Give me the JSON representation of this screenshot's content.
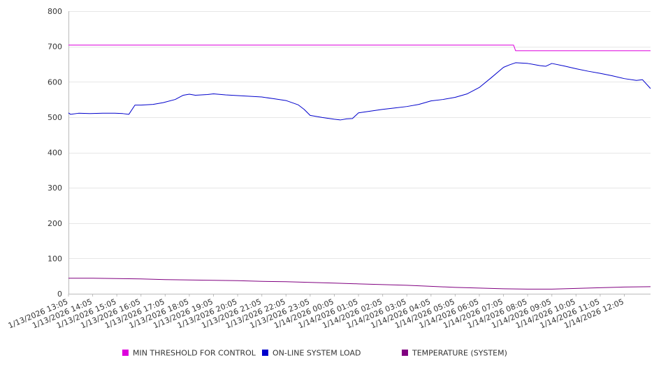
{
  "chart_data": {
    "type": "line",
    "title": "",
    "xlabel": "",
    "ylabel": "",
    "ylim": [
      0,
      800
    ],
    "yticks": [
      0,
      100,
      200,
      300,
      400,
      500,
      600,
      700,
      800
    ],
    "grid": true,
    "legend_position": "bottom",
    "x_start": "1/13/2026 13:05",
    "x_end": "1/14/2026 13:10",
    "xtick_labels": [
      "1/13/2026 13:05",
      "1/13/2026 14:05",
      "1/13/2026 15:05",
      "1/13/2026 16:05",
      "1/13/2026 17:05",
      "1/13/2026 18:05",
      "1/13/2026 19:05",
      "1/13/2026 20:05",
      "1/13/2026 21:05",
      "1/13/2026 22:05",
      "1/13/2026 23:05",
      "1/14/2026 00:05",
      "1/14/2026 01:05",
      "1/14/2026 02:05",
      "1/14/2026 03:05",
      "1/14/2026 04:05",
      "1/14/2026 05:05",
      "1/14/2026 06:05",
      "1/14/2026 07:05",
      "1/14/2026 08:05",
      "1/14/2026 09:05",
      "1/14/2026 10:05",
      "1/14/2026 11:05",
      "1/14/2026 12:05"
    ],
    "series": [
      {
        "name": "MIN THRESHOLD FOR CONTROL",
        "color": "#dd00dd",
        "points": [
          [
            "1/13/2026 13:05",
            704
          ],
          [
            "1/14/2026 07:30",
            704
          ],
          [
            "1/14/2026 07:35",
            688
          ],
          [
            "1/14/2026 13:10",
            688
          ]
        ]
      },
      {
        "name": "ON-LINE SYSTEM LOAD",
        "color": "#0000cc",
        "points": [
          [
            "1/13/2026 13:05",
            512
          ],
          [
            "1/13/2026 13:10",
            508
          ],
          [
            "1/13/2026 13:30",
            511
          ],
          [
            "1/13/2026 14:00",
            510
          ],
          [
            "1/13/2026 14:30",
            511
          ],
          [
            "1/13/2026 15:00",
            511
          ],
          [
            "1/13/2026 15:20",
            510
          ],
          [
            "1/13/2026 15:35",
            508
          ],
          [
            "1/13/2026 15:50",
            534
          ],
          [
            "1/13/2026 16:05",
            534
          ],
          [
            "1/13/2026 16:35",
            536
          ],
          [
            "1/13/2026 17:00",
            541
          ],
          [
            "1/13/2026 17:30",
            550
          ],
          [
            "1/13/2026 17:50",
            562
          ],
          [
            "1/13/2026 18:05",
            565
          ],
          [
            "1/13/2026 18:20",
            562
          ],
          [
            "1/13/2026 18:50",
            564
          ],
          [
            "1/13/2026 19:05",
            566
          ],
          [
            "1/13/2026 19:35",
            563
          ],
          [
            "1/13/2026 20:05",
            561
          ],
          [
            "1/13/2026 20:35",
            559
          ],
          [
            "1/13/2026 21:05",
            557
          ],
          [
            "1/13/2026 21:35",
            552
          ],
          [
            "1/13/2026 22:05",
            547
          ],
          [
            "1/13/2026 22:35",
            535
          ],
          [
            "1/13/2026 22:50",
            522
          ],
          [
            "1/13/2026 23:05",
            505
          ],
          [
            "1/13/2026 23:35",
            499
          ],
          [
            "1/14/2026 00:05",
            494
          ],
          [
            "1/14/2026 00:20",
            492
          ],
          [
            "1/14/2026 00:35",
            495
          ],
          [
            "1/14/2026 00:50",
            496
          ],
          [
            "1/14/2026 01:05",
            512
          ],
          [
            "1/14/2026 01:35",
            517
          ],
          [
            "1/14/2026 02:05",
            522
          ],
          [
            "1/14/2026 02:35",
            526
          ],
          [
            "1/14/2026 03:05",
            530
          ],
          [
            "1/14/2026 03:35",
            536
          ],
          [
            "1/14/2026 04:05",
            546
          ],
          [
            "1/14/2026 04:35",
            550
          ],
          [
            "1/14/2026 05:05",
            556
          ],
          [
            "1/14/2026 05:35",
            566
          ],
          [
            "1/14/2026 06:05",
            584
          ],
          [
            "1/14/2026 06:35",
            612
          ],
          [
            "1/14/2026 07:05",
            641
          ],
          [
            "1/14/2026 07:20",
            648
          ],
          [
            "1/14/2026 07:35",
            654
          ],
          [
            "1/14/2026 08:05",
            652
          ],
          [
            "1/14/2026 08:35",
            646
          ],
          [
            "1/14/2026 08:50",
            644
          ],
          [
            "1/14/2026 09:05",
            652
          ],
          [
            "1/14/2026 09:35",
            645
          ],
          [
            "1/14/2026 10:05",
            637
          ],
          [
            "1/14/2026 10:35",
            630
          ],
          [
            "1/14/2026 11:05",
            624
          ],
          [
            "1/14/2026 11:35",
            617
          ],
          [
            "1/14/2026 12:05",
            609
          ],
          [
            "1/14/2026 12:35",
            604
          ],
          [
            "1/14/2026 12:50",
            606
          ],
          [
            "1/14/2026 13:10",
            581
          ]
        ]
      },
      {
        "name": "TEMPERATURE (SYSTEM)",
        "color": "#800080",
        "points": [
          [
            "1/13/2026 13:05",
            44
          ],
          [
            "1/13/2026 14:05",
            44
          ],
          [
            "1/13/2026 15:05",
            43
          ],
          [
            "1/13/2026 16:05",
            42
          ],
          [
            "1/13/2026 17:05",
            40
          ],
          [
            "1/13/2026 18:05",
            39
          ],
          [
            "1/13/2026 19:05",
            38
          ],
          [
            "1/13/2026 20:05",
            37
          ],
          [
            "1/13/2026 21:05",
            35
          ],
          [
            "1/13/2026 22:05",
            34
          ],
          [
            "1/13/2026 23:05",
            32
          ],
          [
            "1/14/2026 00:05",
            30
          ],
          [
            "1/14/2026 01:05",
            28
          ],
          [
            "1/14/2026 02:05",
            26
          ],
          [
            "1/14/2026 03:05",
            24
          ],
          [
            "1/14/2026 04:05",
            21
          ],
          [
            "1/14/2026 05:05",
            18
          ],
          [
            "1/14/2026 06:05",
            16
          ],
          [
            "1/14/2026 07:05",
            14
          ],
          [
            "1/14/2026 08:05",
            13
          ],
          [
            "1/14/2026 09:05",
            13
          ],
          [
            "1/14/2026 10:05",
            15
          ],
          [
            "1/14/2026 11:05",
            17
          ],
          [
            "1/14/2026 12:05",
            19
          ],
          [
            "1/14/2026 13:10",
            20
          ]
        ]
      }
    ]
  }
}
